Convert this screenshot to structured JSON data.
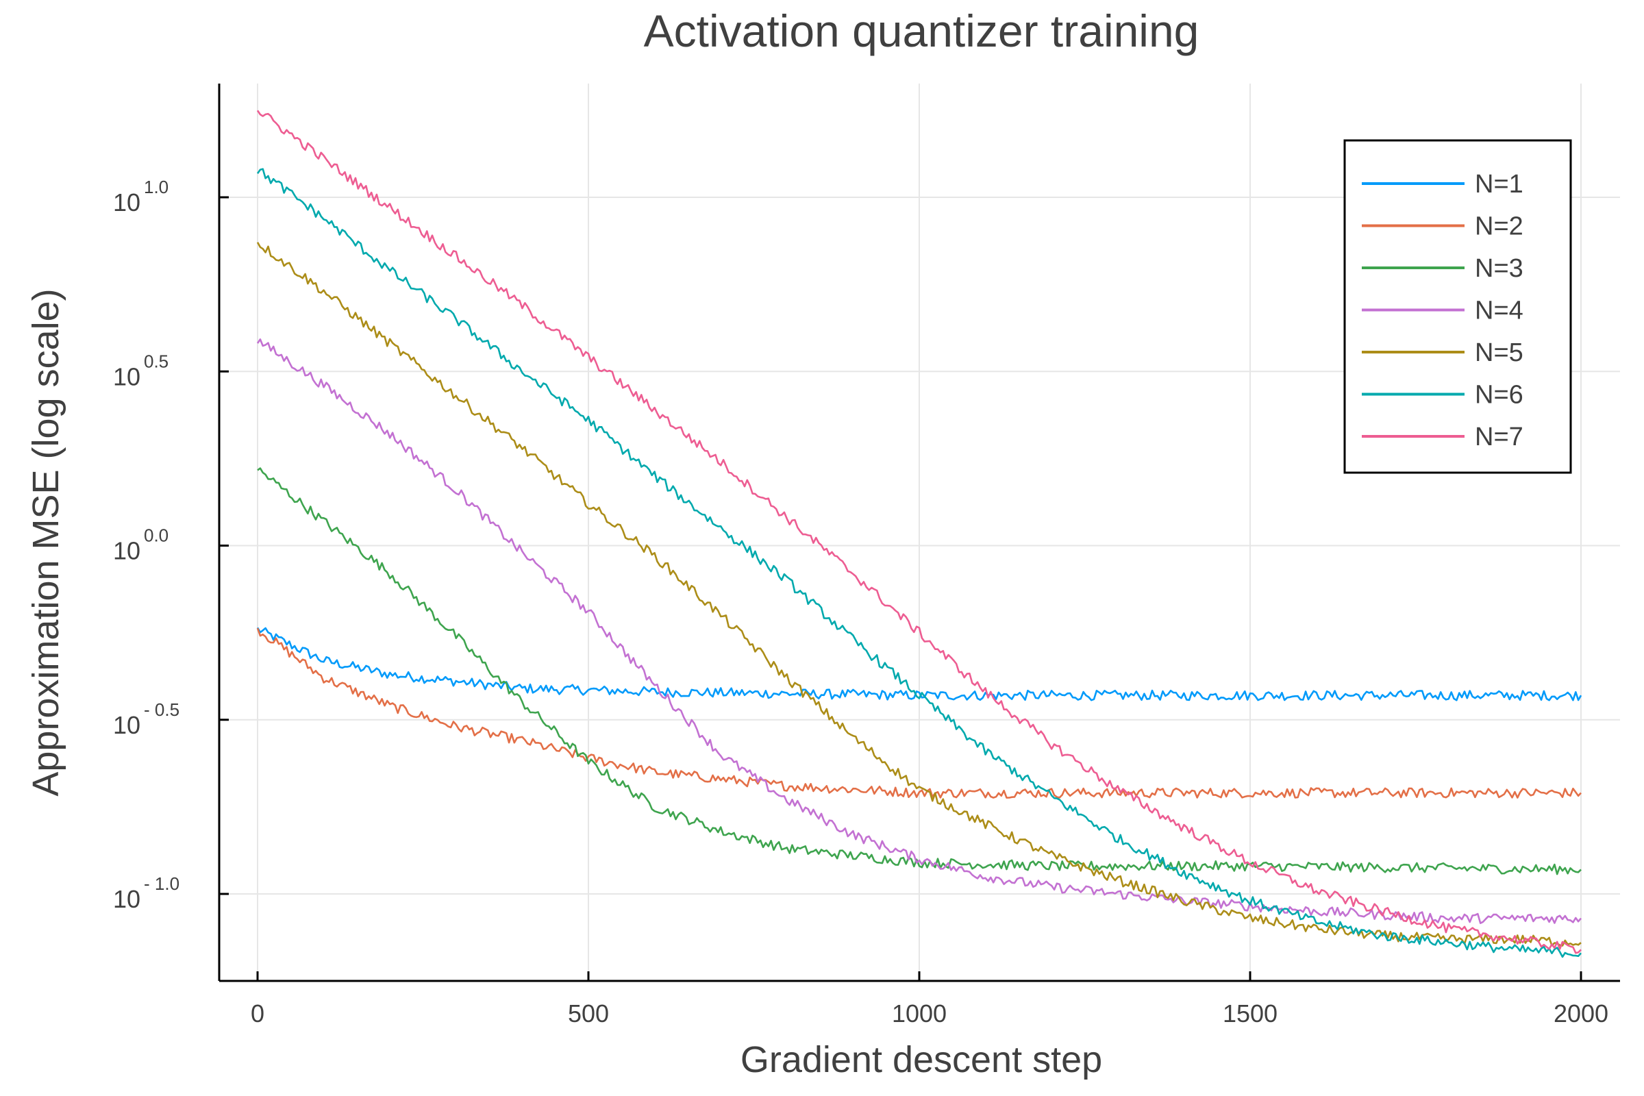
{
  "chart_data": {
    "type": "line",
    "title": "Activation quantizer training",
    "xlabel": "Gradient descent step",
    "ylabel": "Approximation MSE (log scale)",
    "xlim": [
      0,
      2000
    ],
    "y_scale": "log10",
    "ylim_log10": [
      -1.25,
      1.25
    ],
    "x_ticks": [
      0,
      500,
      1000,
      1500,
      2000
    ],
    "x_tick_labels": [
      "0",
      "500",
      "1000",
      "1500",
      "2000"
    ],
    "y_ticks": [
      {
        "value_log10": 1.0,
        "base": "10",
        "exponent": "1.0"
      },
      {
        "value_log10": 0.5,
        "base": "10",
        "exponent": "0.5"
      },
      {
        "value_log10": 0.0,
        "base": "10",
        "exponent": "0.0"
      },
      {
        "value_log10": -0.5,
        "base": "10",
        "exponent": "- 0.5"
      },
      {
        "value_log10": -1.0,
        "base": "10",
        "exponent": "- 1.0"
      }
    ],
    "grid": true,
    "legend_position": "top-right",
    "series": [
      {
        "name": "N=1",
        "color": "#009AFA",
        "x": [
          0,
          100,
          200,
          300,
          400,
          500,
          600,
          800,
          1000,
          1200,
          1500,
          2000
        ],
        "log10_y": [
          -0.24,
          -0.33,
          -0.37,
          -0.39,
          -0.41,
          -0.415,
          -0.42,
          -0.425,
          -0.43,
          -0.43,
          -0.43,
          -0.43
        ]
      },
      {
        "name": "N=2",
        "color": "#E36F47",
        "x": [
          0,
          100,
          200,
          300,
          400,
          500,
          600,
          800,
          1000,
          1200,
          1500,
          2000
        ],
        "log10_y": [
          -0.24,
          -0.38,
          -0.46,
          -0.52,
          -0.56,
          -0.61,
          -0.65,
          -0.69,
          -0.71,
          -0.71,
          -0.71,
          -0.71
        ]
      },
      {
        "name": "N=3",
        "color": "#3EA44E",
        "x": [
          0,
          100,
          200,
          300,
          400,
          500,
          600,
          700,
          800,
          900,
          1000,
          1200,
          1500,
          2000
        ],
        "log10_y": [
          0.22,
          0.07,
          -0.08,
          -0.26,
          -0.45,
          -0.62,
          -0.75,
          -0.82,
          -0.87,
          -0.89,
          -0.91,
          -0.92,
          -0.92,
          -0.93
        ]
      },
      {
        "name": "N=4",
        "color": "#C371D2",
        "x": [
          0,
          100,
          200,
          300,
          400,
          500,
          600,
          700,
          800,
          900,
          1000,
          1100,
          1200,
          1400,
          1600,
          1800,
          2000
        ],
        "log10_y": [
          0.59,
          0.46,
          0.32,
          0.16,
          -0.02,
          -0.19,
          -0.4,
          -0.6,
          -0.73,
          -0.83,
          -0.9,
          -0.95,
          -0.98,
          -1.02,
          -1.05,
          -1.07,
          -1.07
        ]
      },
      {
        "name": "N=5",
        "color": "#AC8D18",
        "x": [
          0,
          100,
          200,
          300,
          400,
          500,
          600,
          700,
          800,
          900,
          1000,
          1100,
          1200,
          1300,
          1400,
          1500,
          1600,
          1700,
          1800,
          1900,
          2000
        ],
        "log10_y": [
          0.87,
          0.73,
          0.58,
          0.43,
          0.28,
          0.12,
          -0.03,
          -0.2,
          -0.38,
          -0.55,
          -0.7,
          -0.8,
          -0.89,
          -0.96,
          -1.02,
          -1.07,
          -1.1,
          -1.12,
          -1.13,
          -1.13,
          -1.14
        ]
      },
      {
        "name": "N=6",
        "color": "#00A9AD",
        "x": [
          0,
          100,
          200,
          300,
          400,
          500,
          600,
          700,
          800,
          900,
          1000,
          1100,
          1200,
          1300,
          1400,
          1500,
          1600,
          1700,
          1800,
          1900,
          2000
        ],
        "log10_y": [
          1.08,
          0.94,
          0.79,
          0.65,
          0.5,
          0.36,
          0.2,
          0.05,
          -0.1,
          -0.27,
          -0.43,
          -0.59,
          -0.72,
          -0.84,
          -0.94,
          -1.02,
          -1.08,
          -1.12,
          -1.14,
          -1.16,
          -1.17
        ]
      },
      {
        "name": "N=7",
        "color": "#ED5D92",
        "x": [
          0,
          100,
          200,
          300,
          400,
          500,
          600,
          700,
          800,
          900,
          1000,
          1100,
          1200,
          1300,
          1400,
          1500,
          1600,
          1700,
          1800,
          1900,
          2000
        ],
        "log10_y": [
          1.25,
          1.11,
          0.97,
          0.83,
          0.69,
          0.54,
          0.39,
          0.24,
          0.08,
          -0.08,
          -0.25,
          -0.42,
          -0.57,
          -0.7,
          -0.81,
          -0.91,
          -0.99,
          -1.05,
          -1.1,
          -1.13,
          -1.16
        ]
      }
    ]
  }
}
